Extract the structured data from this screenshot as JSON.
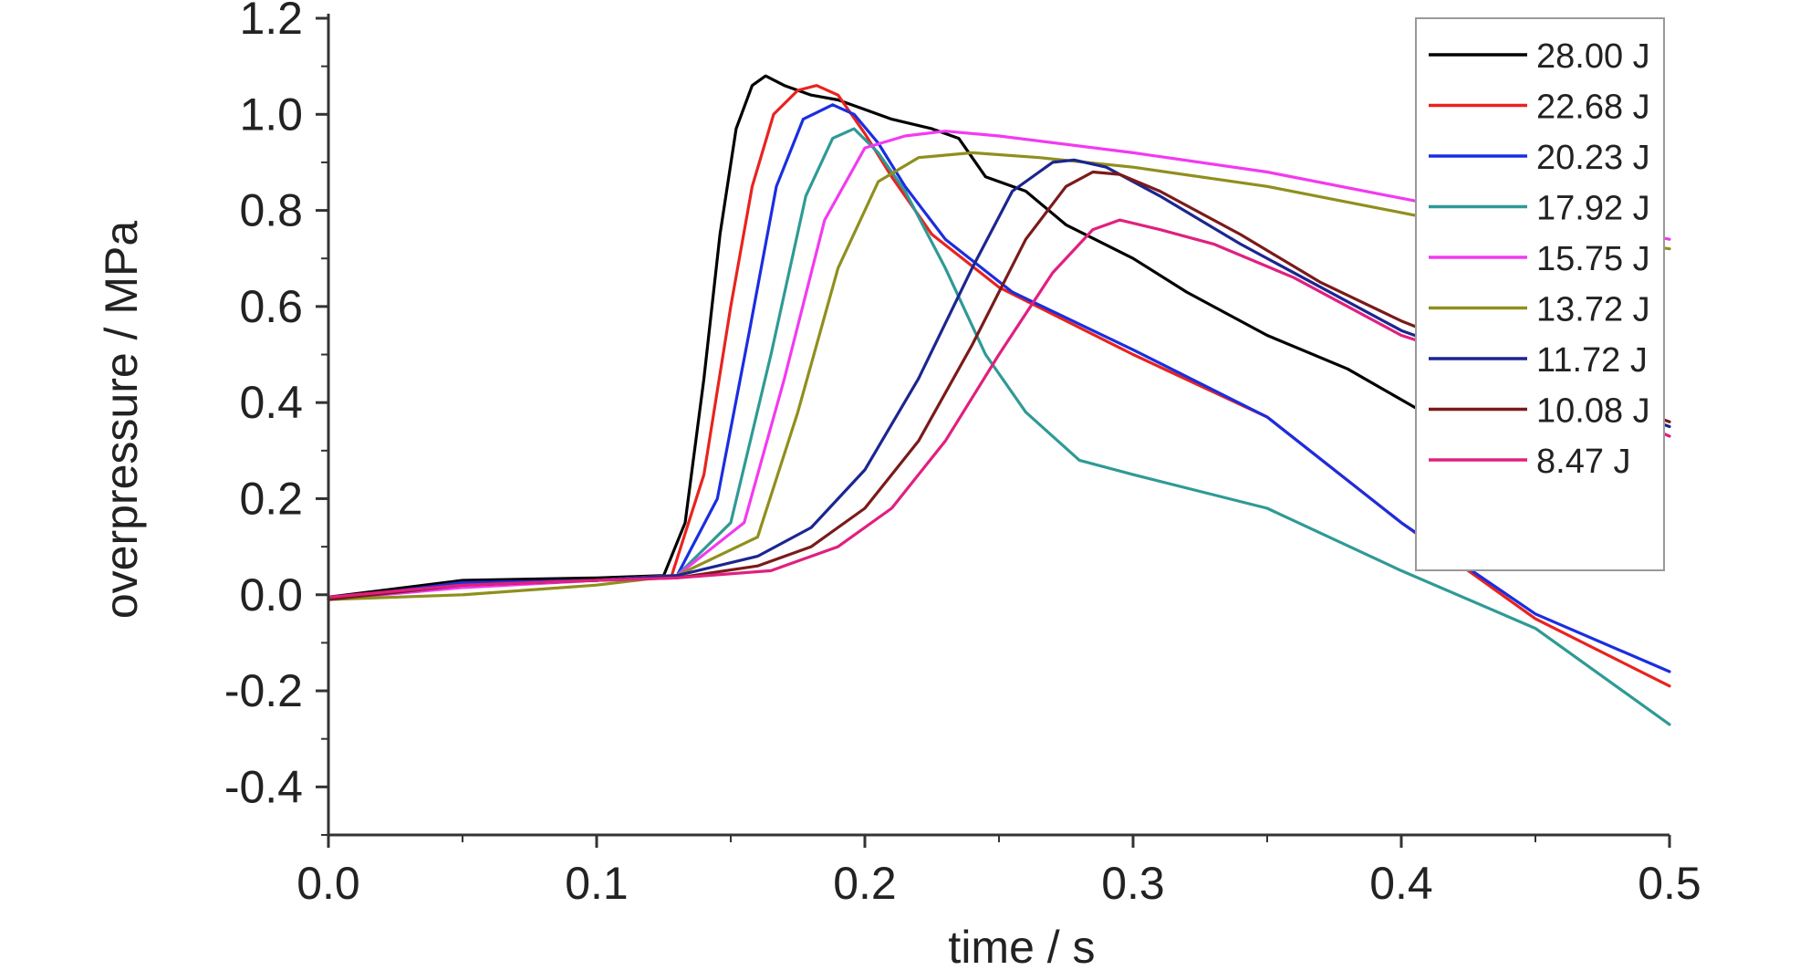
{
  "chart_data": {
    "type": "line",
    "xlabel": "time / s",
    "ylabel": "overpressure / MPa",
    "xlim": [
      0,
      0.5
    ],
    "ylim": [
      -0.5,
      1.2
    ],
    "xticks": [
      "0.0",
      "0.1",
      "0.2",
      "0.3",
      "0.4",
      "0.5"
    ],
    "yticks": [
      "-0.4",
      "-0.2",
      "0.0",
      "0.2",
      "0.4",
      "0.6",
      "0.8",
      "1.0",
      "1.2"
    ],
    "grid": false,
    "legend_position": "top-right",
    "series": [
      {
        "name": "28.00 J",
        "color": "#000000",
        "points": [
          [
            0,
            -0.005
          ],
          [
            0.05,
            0.03
          ],
          [
            0.1,
            0.035
          ],
          [
            0.125,
            0.04
          ],
          [
            0.133,
            0.15
          ],
          [
            0.14,
            0.45
          ],
          [
            0.146,
            0.75
          ],
          [
            0.152,
            0.97
          ],
          [
            0.158,
            1.06
          ],
          [
            0.163,
            1.08
          ],
          [
            0.17,
            1.06
          ],
          [
            0.18,
            1.04
          ],
          [
            0.19,
            1.03
          ],
          [
            0.2,
            1.01
          ],
          [
            0.21,
            0.99
          ],
          [
            0.225,
            0.97
          ],
          [
            0.235,
            0.95
          ],
          [
            0.245,
            0.87
          ],
          [
            0.26,
            0.84
          ],
          [
            0.275,
            0.77
          ],
          [
            0.3,
            0.7
          ],
          [
            0.32,
            0.63
          ],
          [
            0.35,
            0.54
          ],
          [
            0.38,
            0.47
          ],
          [
            0.405,
            0.39
          ]
        ]
      },
      {
        "name": "22.68 J",
        "color": "#e8231f",
        "points": [
          [
            0,
            -0.01
          ],
          [
            0.05,
            0.025
          ],
          [
            0.1,
            0.03
          ],
          [
            0.128,
            0.04
          ],
          [
            0.14,
            0.25
          ],
          [
            0.15,
            0.6
          ],
          [
            0.158,
            0.85
          ],
          [
            0.166,
            1.0
          ],
          [
            0.175,
            1.05
          ],
          [
            0.182,
            1.06
          ],
          [
            0.19,
            1.04
          ],
          [
            0.2,
            0.96
          ],
          [
            0.21,
            0.87
          ],
          [
            0.225,
            0.75
          ],
          [
            0.25,
            0.64
          ],
          [
            0.3,
            0.5
          ],
          [
            0.35,
            0.37
          ],
          [
            0.4,
            0.15
          ],
          [
            0.45,
            -0.05
          ],
          [
            0.5,
            -0.19
          ]
        ]
      },
      {
        "name": "20.23 J",
        "color": "#1a2ee0",
        "points": [
          [
            0,
            -0.01
          ],
          [
            0.05,
            0.025
          ],
          [
            0.1,
            0.03
          ],
          [
            0.13,
            0.04
          ],
          [
            0.145,
            0.2
          ],
          [
            0.157,
            0.55
          ],
          [
            0.167,
            0.85
          ],
          [
            0.177,
            0.99
          ],
          [
            0.188,
            1.02
          ],
          [
            0.196,
            1.0
          ],
          [
            0.205,
            0.94
          ],
          [
            0.215,
            0.85
          ],
          [
            0.23,
            0.74
          ],
          [
            0.255,
            0.63
          ],
          [
            0.3,
            0.51
          ],
          [
            0.35,
            0.37
          ],
          [
            0.4,
            0.15
          ],
          [
            0.45,
            -0.04
          ],
          [
            0.5,
            -0.16
          ]
        ]
      },
      {
        "name": "17.92 J",
        "color": "#2f9a95",
        "points": [
          [
            0,
            -0.01
          ],
          [
            0.05,
            0.02
          ],
          [
            0.1,
            0.03
          ],
          [
            0.13,
            0.04
          ],
          [
            0.15,
            0.15
          ],
          [
            0.165,
            0.5
          ],
          [
            0.178,
            0.83
          ],
          [
            0.188,
            0.95
          ],
          [
            0.196,
            0.97
          ],
          [
            0.205,
            0.92
          ],
          [
            0.215,
            0.84
          ],
          [
            0.23,
            0.68
          ],
          [
            0.245,
            0.5
          ],
          [
            0.26,
            0.38
          ],
          [
            0.28,
            0.28
          ],
          [
            0.3,
            0.25
          ],
          [
            0.35,
            0.18
          ],
          [
            0.4,
            0.05
          ],
          [
            0.45,
            -0.07
          ],
          [
            0.5,
            -0.27
          ]
        ]
      },
      {
        "name": "15.75 J",
        "color": "#f23af0",
        "points": [
          [
            0,
            -0.01
          ],
          [
            0.05,
            0.015
          ],
          [
            0.1,
            0.03
          ],
          [
            0.13,
            0.04
          ],
          [
            0.155,
            0.15
          ],
          [
            0.17,
            0.45
          ],
          [
            0.185,
            0.78
          ],
          [
            0.2,
            0.93
          ],
          [
            0.215,
            0.955
          ],
          [
            0.23,
            0.965
          ],
          [
            0.25,
            0.955
          ],
          [
            0.3,
            0.92
          ],
          [
            0.35,
            0.88
          ],
          [
            0.405,
            0.82
          ],
          [
            0.45,
            0.79
          ],
          [
            0.5,
            0.74
          ]
        ]
      },
      {
        "name": "13.72 J",
        "color": "#8f8f1e",
        "points": [
          [
            0,
            -0.01
          ],
          [
            0.05,
            0.0
          ],
          [
            0.1,
            0.02
          ],
          [
            0.13,
            0.04
          ],
          [
            0.16,
            0.12
          ],
          [
            0.175,
            0.38
          ],
          [
            0.19,
            0.68
          ],
          [
            0.205,
            0.86
          ],
          [
            0.22,
            0.91
          ],
          [
            0.24,
            0.92
          ],
          [
            0.265,
            0.91
          ],
          [
            0.3,
            0.89
          ],
          [
            0.35,
            0.85
          ],
          [
            0.405,
            0.79
          ],
          [
            0.45,
            0.76
          ],
          [
            0.5,
            0.72
          ]
        ]
      },
      {
        "name": "11.72 J",
        "color": "#1b2690",
        "points": [
          [
            0,
            -0.01
          ],
          [
            0.05,
            0.02
          ],
          [
            0.1,
            0.03
          ],
          [
            0.13,
            0.04
          ],
          [
            0.16,
            0.08
          ],
          [
            0.18,
            0.14
          ],
          [
            0.2,
            0.26
          ],
          [
            0.22,
            0.45
          ],
          [
            0.24,
            0.68
          ],
          [
            0.255,
            0.84
          ],
          [
            0.27,
            0.9
          ],
          [
            0.278,
            0.905
          ],
          [
            0.29,
            0.89
          ],
          [
            0.31,
            0.83
          ],
          [
            0.34,
            0.73
          ],
          [
            0.37,
            0.64
          ],
          [
            0.4,
            0.55
          ],
          [
            0.45,
            0.45
          ],
          [
            0.5,
            0.35
          ]
        ]
      },
      {
        "name": "10.08 J",
        "color": "#7b1a1a",
        "points": [
          [
            0,
            -0.01
          ],
          [
            0.05,
            0.02
          ],
          [
            0.1,
            0.03
          ],
          [
            0.13,
            0.035
          ],
          [
            0.16,
            0.06
          ],
          [
            0.18,
            0.1
          ],
          [
            0.2,
            0.18
          ],
          [
            0.22,
            0.32
          ],
          [
            0.24,
            0.52
          ],
          [
            0.26,
            0.74
          ],
          [
            0.275,
            0.85
          ],
          [
            0.285,
            0.88
          ],
          [
            0.295,
            0.875
          ],
          [
            0.31,
            0.84
          ],
          [
            0.34,
            0.75
          ],
          [
            0.37,
            0.65
          ],
          [
            0.4,
            0.57
          ],
          [
            0.45,
            0.46
          ],
          [
            0.5,
            0.36
          ]
        ]
      },
      {
        "name": "8.47 J",
        "color": "#e0207f",
        "points": [
          [
            0,
            -0.005
          ],
          [
            0.05,
            0.02
          ],
          [
            0.1,
            0.03
          ],
          [
            0.13,
            0.035
          ],
          [
            0.165,
            0.05
          ],
          [
            0.19,
            0.1
          ],
          [
            0.21,
            0.18
          ],
          [
            0.23,
            0.32
          ],
          [
            0.25,
            0.5
          ],
          [
            0.27,
            0.67
          ],
          [
            0.285,
            0.76
          ],
          [
            0.295,
            0.78
          ],
          [
            0.31,
            0.76
          ],
          [
            0.33,
            0.73
          ],
          [
            0.36,
            0.66
          ],
          [
            0.4,
            0.54
          ],
          [
            0.45,
            0.45
          ],
          [
            0.5,
            0.33
          ]
        ]
      }
    ]
  }
}
